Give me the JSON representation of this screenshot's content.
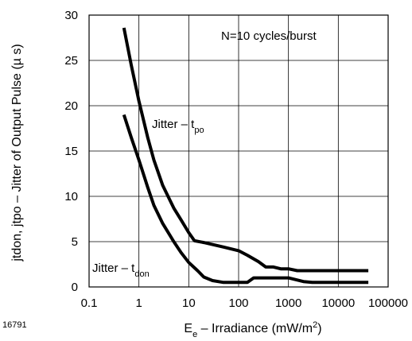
{
  "figure_id": "16791",
  "chart_data": {
    "type": "line",
    "title": "",
    "xlabel": {
      "main": "E",
      "sub": "e",
      "rest": " – Irradiance (mW/m",
      "sup": "2",
      "end": ")"
    },
    "ylabel": "jtdon, jtpo – Jitter of Output Pulse (µ s)",
    "x_scale": "log",
    "xlim": [
      0.1,
      100000
    ],
    "ylim": [
      0,
      30
    ],
    "x_ticks": [
      "0.1",
      "1",
      "10",
      "100",
      "1000",
      "10000",
      "100000"
    ],
    "y_ticks": [
      "0",
      "5",
      "10",
      "15",
      "20",
      "25",
      "30"
    ],
    "grid": true,
    "annotation": "N=10 cycles/burst",
    "series": [
      {
        "name_main": "Jitter – t",
        "name_sub": "po",
        "points": [
          [
            0.5,
            28.6
          ],
          [
            0.7,
            24.5
          ],
          [
            1.0,
            20.5
          ],
          [
            1.5,
            16.5
          ],
          [
            2.0,
            14.0
          ],
          [
            3.0,
            11.2
          ],
          [
            5.0,
            8.7
          ],
          [
            7.0,
            7.4
          ],
          [
            10.0,
            6.0
          ],
          [
            13.0,
            5.1
          ],
          [
            20.0,
            4.9
          ],
          [
            50.0,
            4.4
          ],
          [
            100.0,
            4.0
          ],
          [
            150.0,
            3.5
          ],
          [
            250.0,
            2.8
          ],
          [
            350.0,
            2.2
          ],
          [
            500.0,
            2.2
          ],
          [
            700.0,
            2.0
          ],
          [
            1000.0,
            2.0
          ],
          [
            1500.0,
            1.8
          ],
          [
            2500.0,
            1.8
          ],
          [
            3000.0,
            1.8
          ],
          [
            40000.0,
            1.8
          ]
        ]
      },
      {
        "name_main": "Jitter – t",
        "name_sub": "don",
        "points": [
          [
            0.5,
            19.0
          ],
          [
            0.7,
            16.5
          ],
          [
            1.0,
            14.0
          ],
          [
            1.5,
            11.0
          ],
          [
            2.0,
            9.0
          ],
          [
            3.0,
            7.0
          ],
          [
            5.0,
            5.0
          ],
          [
            7.0,
            3.8
          ],
          [
            10.0,
            2.7
          ],
          [
            15.0,
            1.8
          ],
          [
            20.0,
            1.1
          ],
          [
            30.0,
            0.7
          ],
          [
            50.0,
            0.5
          ],
          [
            150.0,
            0.5
          ],
          [
            200.0,
            1.0
          ],
          [
            1000.0,
            1.0
          ],
          [
            2000.0,
            0.6
          ],
          [
            3000.0,
            0.5
          ],
          [
            40000.0,
            0.5
          ]
        ]
      }
    ]
  }
}
